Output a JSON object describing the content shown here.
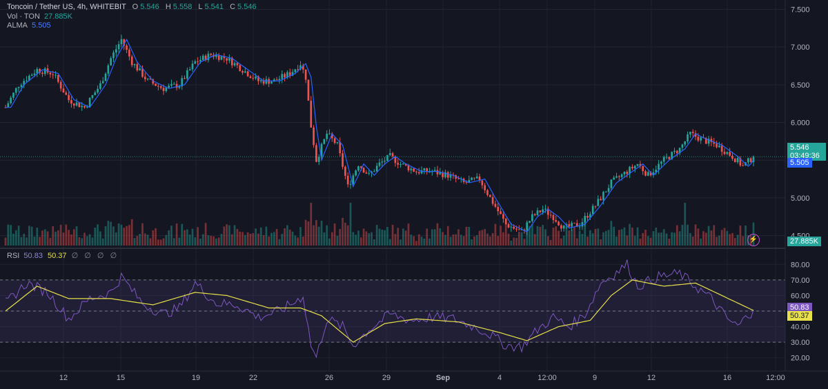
{
  "header": {
    "symbol": "Toncoin / Tether US, 4h, WHITEBIT",
    "open_label": "O",
    "open": "5.546",
    "high_label": "H",
    "high": "5.558",
    "low_label": "L",
    "low": "5.541",
    "close_label": "C",
    "close": "5.546",
    "volume_label": "Vol · TON",
    "volume": "27.885K",
    "alma_label": "ALMA",
    "alma": "5.505",
    "rsi_label": "RSI",
    "rsi": "50.83",
    "rsi_ma": "50.37",
    "empty_slots": [
      "∅",
      "∅",
      "∅",
      "∅"
    ]
  },
  "badges": {
    "price": "5.546",
    "countdown": "03:49:36",
    "alma": "5.505",
    "volume": "27.885K",
    "rsi": "50.83",
    "rsi_ma": "50.37"
  },
  "colors": {
    "background": "#141722",
    "up": "#26a69a",
    "down": "#ef5350",
    "alma": "#2962ff",
    "rsi": "#7e57c2",
    "rsi_ma": "#e8e14a",
    "rsi_band": "#7e57c2"
  },
  "chart_data": [
    {
      "type": "candlestick",
      "title": "Toncoin / Tether US, 4h, WHITEBIT",
      "y_ticks": [
        "7.500",
        "7.000",
        "6.500",
        "6.000",
        "5.500",
        "5.000",
        "4.500"
      ],
      "ylim": [
        4.35,
        7.55
      ],
      "x_ticks": [
        "12",
        "15",
        "19",
        "22",
        "26",
        "29",
        "Sep",
        "4",
        "12:00",
        "9",
        "12",
        "16",
        "12:00"
      ],
      "last_close": 5.546,
      "alma_last": 5.505,
      "volume_last": "27.885K",
      "close_path_keypoints": [
        {
          "i": 0,
          "v": 6.2
        },
        {
          "i": 5,
          "v": 6.5
        },
        {
          "i": 12,
          "v": 6.7
        },
        {
          "i": 18,
          "v": 6.65
        },
        {
          "i": 24,
          "v": 6.3
        },
        {
          "i": 30,
          "v": 6.2
        },
        {
          "i": 36,
          "v": 6.5
        },
        {
          "i": 40,
          "v": 6.85
        },
        {
          "i": 44,
          "v": 7.1
        },
        {
          "i": 48,
          "v": 6.8
        },
        {
          "i": 54,
          "v": 6.55
        },
        {
          "i": 60,
          "v": 6.45
        },
        {
          "i": 66,
          "v": 6.5
        },
        {
          "i": 72,
          "v": 6.8
        },
        {
          "i": 78,
          "v": 6.9
        },
        {
          "i": 84,
          "v": 6.85
        },
        {
          "i": 90,
          "v": 6.7
        },
        {
          "i": 96,
          "v": 6.55
        },
        {
          "i": 102,
          "v": 6.55
        },
        {
          "i": 108,
          "v": 6.65
        },
        {
          "i": 112,
          "v": 6.78
        },
        {
          "i": 114,
          "v": 6.6
        },
        {
          "i": 116,
          "v": 5.95
        },
        {
          "i": 118,
          "v": 5.5
        },
        {
          "i": 122,
          "v": 5.85
        },
        {
          "i": 126,
          "v": 5.7
        },
        {
          "i": 130,
          "v": 5.15
        },
        {
          "i": 134,
          "v": 5.45
        },
        {
          "i": 138,
          "v": 5.3
        },
        {
          "i": 142,
          "v": 5.45
        },
        {
          "i": 146,
          "v": 5.55
        },
        {
          "i": 150,
          "v": 5.45
        },
        {
          "i": 156,
          "v": 5.35
        },
        {
          "i": 162,
          "v": 5.35
        },
        {
          "i": 168,
          "v": 5.3
        },
        {
          "i": 174,
          "v": 5.2
        },
        {
          "i": 180,
          "v": 5.25
        },
        {
          "i": 184,
          "v": 5.0
        },
        {
          "i": 190,
          "v": 4.65
        },
        {
          "i": 196,
          "v": 4.55
        },
        {
          "i": 200,
          "v": 4.75
        },
        {
          "i": 204,
          "v": 4.85
        },
        {
          "i": 208,
          "v": 4.75
        },
        {
          "i": 212,
          "v": 4.6
        },
        {
          "i": 218,
          "v": 4.65
        },
        {
          "i": 224,
          "v": 4.9
        },
        {
          "i": 230,
          "v": 5.2
        },
        {
          "i": 236,
          "v": 5.35
        },
        {
          "i": 240,
          "v": 5.45
        },
        {
          "i": 244,
          "v": 5.3
        },
        {
          "i": 250,
          "v": 5.5
        },
        {
          "i": 256,
          "v": 5.65
        },
        {
          "i": 260,
          "v": 5.85
        },
        {
          "i": 264,
          "v": 5.78
        },
        {
          "i": 270,
          "v": 5.7
        },
        {
          "i": 276,
          "v": 5.55
        },
        {
          "i": 280,
          "v": 5.42
        },
        {
          "i": 284,
          "v": 5.546
        }
      ],
      "n_bars": 285
    },
    {
      "type": "line",
      "title": "RSI",
      "y_ticks": [
        "80.00",
        "70.00",
        "60.00",
        "50.00",
        "40.00",
        "30.00",
        "20.00"
      ],
      "ylim": [
        15,
        85
      ],
      "band": [
        30,
        70
      ],
      "midline": 50,
      "series": [
        {
          "name": "RSI",
          "last": 50.83,
          "keypoints": [
            {
              "i": 0,
              "v": 55
            },
            {
              "i": 8,
              "v": 68
            },
            {
              "i": 16,
              "v": 62
            },
            {
              "i": 24,
              "v": 45
            },
            {
              "i": 32,
              "v": 58
            },
            {
              "i": 40,
              "v": 62
            },
            {
              "i": 44,
              "v": 72
            },
            {
              "i": 52,
              "v": 55
            },
            {
              "i": 60,
              "v": 48
            },
            {
              "i": 66,
              "v": 52
            },
            {
              "i": 72,
              "v": 68
            },
            {
              "i": 80,
              "v": 55
            },
            {
              "i": 88,
              "v": 54
            },
            {
              "i": 96,
              "v": 46
            },
            {
              "i": 104,
              "v": 50
            },
            {
              "i": 110,
              "v": 56
            },
            {
              "i": 113,
              "v": 60
            },
            {
              "i": 116,
              "v": 28
            },
            {
              "i": 118,
              "v": 20
            },
            {
              "i": 122,
              "v": 45
            },
            {
              "i": 128,
              "v": 40
            },
            {
              "i": 132,
              "v": 28
            },
            {
              "i": 138,
              "v": 38
            },
            {
              "i": 146,
              "v": 48
            },
            {
              "i": 154,
              "v": 44
            },
            {
              "i": 162,
              "v": 46
            },
            {
              "i": 170,
              "v": 45
            },
            {
              "i": 178,
              "v": 40
            },
            {
              "i": 184,
              "v": 35
            },
            {
              "i": 190,
              "v": 28
            },
            {
              "i": 196,
              "v": 27
            },
            {
              "i": 202,
              "v": 38
            },
            {
              "i": 208,
              "v": 46
            },
            {
              "i": 214,
              "v": 40
            },
            {
              "i": 220,
              "v": 48
            },
            {
              "i": 226,
              "v": 68
            },
            {
              "i": 232,
              "v": 75
            },
            {
              "i": 236,
              "v": 80
            },
            {
              "i": 240,
              "v": 66
            },
            {
              "i": 248,
              "v": 72
            },
            {
              "i": 256,
              "v": 74
            },
            {
              "i": 262,
              "v": 66
            },
            {
              "i": 268,
              "v": 58
            },
            {
              "i": 274,
              "v": 45
            },
            {
              "i": 278,
              "v": 40
            },
            {
              "i": 284,
              "v": 50.83
            }
          ]
        },
        {
          "name": "RSI-based MA",
          "last": 50.37,
          "keypoints": [
            {
              "i": 0,
              "v": 50
            },
            {
              "i": 12,
              "v": 66
            },
            {
              "i": 24,
              "v": 58
            },
            {
              "i": 40,
              "v": 58
            },
            {
              "i": 56,
              "v": 54
            },
            {
              "i": 72,
              "v": 62
            },
            {
              "i": 84,
              "v": 60
            },
            {
              "i": 100,
              "v": 52
            },
            {
              "i": 112,
              "v": 52
            },
            {
              "i": 120,
              "v": 47
            },
            {
              "i": 132,
              "v": 30
            },
            {
              "i": 144,
              "v": 42
            },
            {
              "i": 156,
              "v": 45
            },
            {
              "i": 172,
              "v": 43
            },
            {
              "i": 188,
              "v": 36
            },
            {
              "i": 198,
              "v": 31
            },
            {
              "i": 210,
              "v": 40
            },
            {
              "i": 222,
              "v": 44
            },
            {
              "i": 230,
              "v": 60
            },
            {
              "i": 238,
              "v": 70
            },
            {
              "i": 250,
              "v": 66
            },
            {
              "i": 262,
              "v": 68
            },
            {
              "i": 272,
              "v": 60
            },
            {
              "i": 284,
              "v": 50.37
            }
          ]
        }
      ]
    }
  ]
}
